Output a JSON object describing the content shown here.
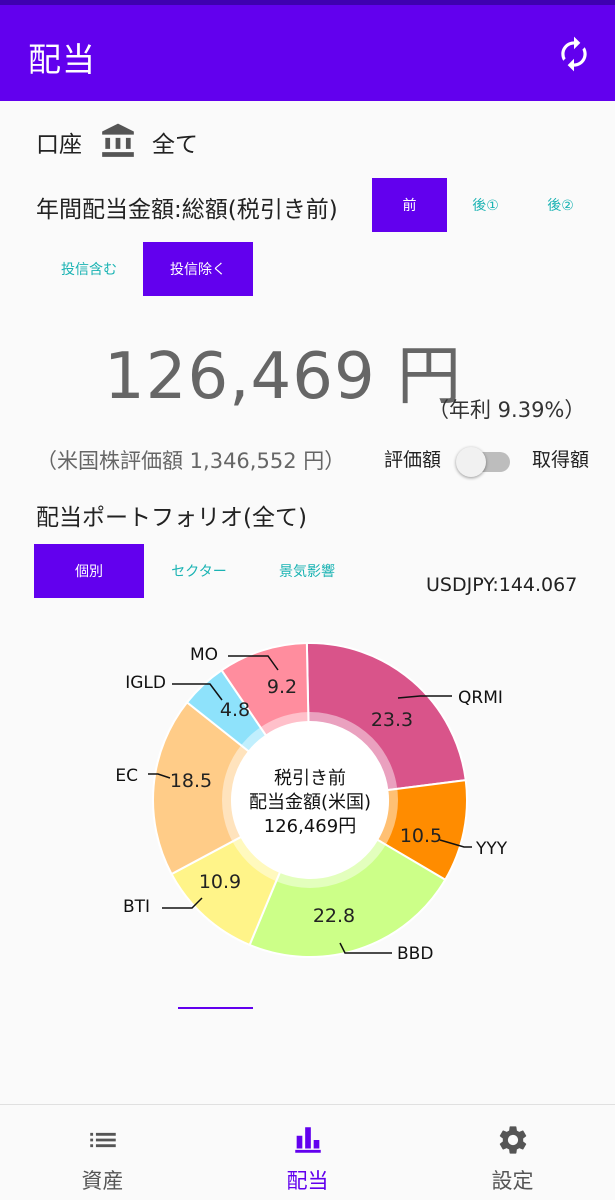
{
  "app": {
    "title": "配当",
    "accent": "#6200ee"
  },
  "account": {
    "label": "口座",
    "value": "全て",
    "icon": "bank-icon"
  },
  "annual": {
    "label": "年間配当金額:総額(税引き前)"
  },
  "tax_buttons": [
    {
      "label": "前",
      "active": true
    },
    {
      "label": "後①",
      "active": false
    },
    {
      "label": "後②",
      "active": false
    }
  ],
  "fund_buttons": [
    {
      "label": "投信含む",
      "active": false
    },
    {
      "label": "投信除く",
      "active": true
    }
  ],
  "summary": {
    "amount": "126,469 円",
    "yield": "（年利 9.39%）",
    "valuation": "（米国株評価額 1,346,552 円）"
  },
  "toggle": {
    "left_label": "評価額",
    "right_label": "取得額",
    "on": false
  },
  "portfolio": {
    "label": "配当ポートフォリオ(全て)"
  },
  "view_buttons": [
    {
      "label": "個別",
      "active": true
    },
    {
      "label": "セクター",
      "active": false
    },
    {
      "label": "景気影響",
      "active": false
    }
  ],
  "fx": "USDJPY:144.067",
  "chart_data": {
    "type": "pie",
    "categories": [
      "QRMI",
      "YYY",
      "BBD",
      "BTI",
      "EC",
      "IGLD",
      "MO"
    ],
    "values": [
      23.3,
      10.5,
      22.8,
      10.9,
      18.5,
      4.8,
      9.2
    ],
    "value_labels": [
      "23.3",
      "10.5",
      "22.8",
      "10.9",
      "18.5",
      "4.8",
      "9.2"
    ],
    "colors": [
      "#d9548a",
      "#ff8c00",
      "#ccff88",
      "#fff489",
      "#ffcc88",
      "#8ee2fb",
      "#ff8d9e"
    ],
    "center_text": [
      "税引き前",
      "配当金額(米国)",
      "126,469円"
    ],
    "donut": true
  },
  "bottom_nav": [
    {
      "label": "資産",
      "icon": "list-icon",
      "active": false
    },
    {
      "label": "配当",
      "icon": "bar-chart-icon",
      "active": true
    },
    {
      "label": "設定",
      "icon": "gear-icon",
      "active": false
    }
  ]
}
